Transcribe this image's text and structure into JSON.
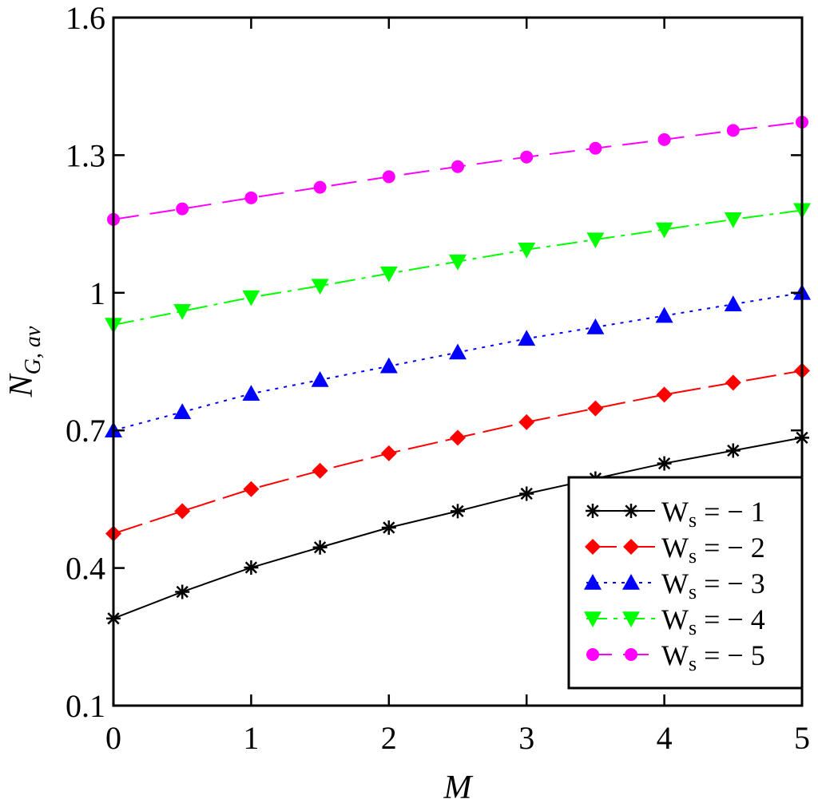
{
  "chart_data": {
    "type": "line",
    "xlabel": "M",
    "ylabel": "N",
    "ylabel_sub": "G, av",
    "xlim": [
      0,
      5
    ],
    "ylim": [
      0.1,
      1.6
    ],
    "xticks": [
      "0",
      "1",
      "2",
      "3",
      "4",
      "5"
    ],
    "yticks": [
      "0.1",
      "0.4",
      "0.7",
      "1",
      "1.3",
      "1.6"
    ],
    "grid": false,
    "legend_position": "bottom-right",
    "x": [
      0,
      0.5,
      1,
      1.5,
      2,
      2.5,
      3,
      3.5,
      4,
      4.5,
      5
    ],
    "series": [
      {
        "name": "W",
        "name_sub": "s",
        "name_rest": " = − 1",
        "color": "#000000",
        "marker": "asterisk",
        "dash": "",
        "values": [
          0.29,
          0.348,
          0.401,
          0.445,
          0.488,
          0.524,
          0.562,
          0.595,
          0.628,
          0.656,
          0.684
        ]
      },
      {
        "name": "W",
        "name_sub": "s",
        "name_rest": " = − 2",
        "color": "#ff0000",
        "marker": "diamond",
        "dash": "38,10",
        "values": [
          0.475,
          0.524,
          0.572,
          0.612,
          0.65,
          0.684,
          0.718,
          0.748,
          0.778,
          0.804,
          0.83
        ]
      },
      {
        "name": "W",
        "name_sub": "s",
        "name_rest": " = − 3",
        "color": "#0000ff",
        "marker": "triangle-up",
        "dash": "4,7",
        "values": [
          0.7,
          0.74,
          0.78,
          0.81,
          0.84,
          0.87,
          0.9,
          0.925,
          0.95,
          0.975,
          1.0
        ]
      },
      {
        "name": "W",
        "name_sub": "s",
        "name_rest": " = − 4",
        "color": "#00ff00",
        "marker": "triangle-down",
        "dash": "26,8,5,8",
        "values": [
          0.93,
          0.96,
          0.99,
          1.015,
          1.042,
          1.068,
          1.094,
          1.116,
          1.138,
          1.16,
          1.18
        ]
      },
      {
        "name": "W",
        "name_sub": "s",
        "name_rest": " = − 5",
        "color": "#ff00ff",
        "marker": "circle",
        "dash": "32,14",
        "values": [
          1.16,
          1.183,
          1.207,
          1.23,
          1.253,
          1.275,
          1.296,
          1.315,
          1.334,
          1.354,
          1.372
        ]
      }
    ]
  }
}
